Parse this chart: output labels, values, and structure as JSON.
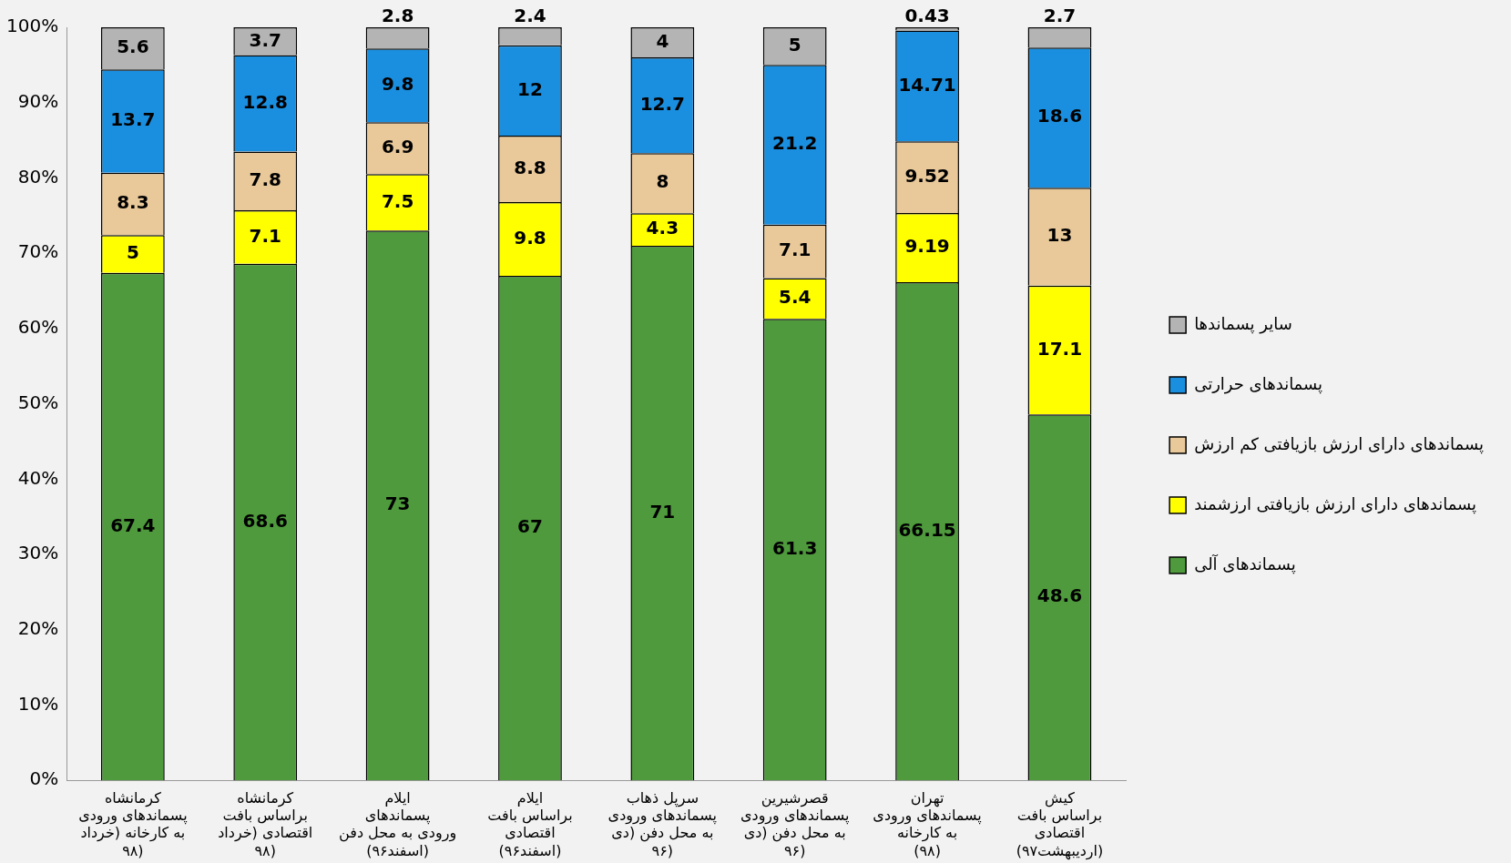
{
  "chart_data": {
    "type": "bar",
    "stacked": true,
    "categories": [
      "کرمانشاه\nپسماندهای ورودی\nبه کارخانه (خرداد\n۹۸)",
      "کرمانشاه\nبراساس بافت\nاقتصادی (خرداد\n۹۸)",
      "ایلام\nپسماندهای\nورودی به محل دفن\n(اسفند۹۶)",
      "ایلام\nبراساس بافت\nاقتصادی\n(اسفند۹۶)",
      "سرپل ذهاب\nپسماندهای ورودی\nبه محل دفن (دی\n۹۶)",
      "قصرشیرین\nپسماندهای ورودی\nبه محل دفن (دی\n۹۶)",
      "تهران\nپسماندهای ورودی\nبه کارخانه\n(۹۸)",
      "کیش\nبراساس بافت\nاقتصادی\n(اردیبهشت۹۷)"
    ],
    "series": [
      {
        "name": "پسماندهای آلی",
        "color": "#4e9a3c",
        "values": [
          67.4,
          68.6,
          73,
          67,
          71,
          61.3,
          66.15,
          48.6
        ]
      },
      {
        "name": "پسماندهای دارای ارزش بازیافتی ارزشمند",
        "color": "#ffff00",
        "values": [
          5,
          7.1,
          7.5,
          9.8,
          4.3,
          5.4,
          9.19,
          17.1
        ]
      },
      {
        "name": "پسماندهای دارای ارزش بازیافتی کم ارزش",
        "color": "#e9c99a",
        "values": [
          8.3,
          7.8,
          6.9,
          8.8,
          8,
          7.1,
          9.52,
          13
        ]
      },
      {
        "name": "پسماندهای حرارتی",
        "color": "#1b8fdf",
        "values": [
          13.7,
          12.8,
          9.8,
          12,
          12.7,
          21.2,
          14.71,
          18.6
        ]
      },
      {
        "name": "سایر پسماندها",
        "color": "#b4b4b4",
        "values": [
          5.6,
          3.7,
          2.8,
          2.4,
          4,
          5,
          0.43,
          2.7
        ]
      }
    ],
    "ylim": [
      0,
      100
    ],
    "yticks": [
      {
        "value": 0,
        "label": "0%"
      },
      {
        "value": 10,
        "label": "10%"
      },
      {
        "value": 20,
        "label": "20%"
      },
      {
        "value": 30,
        "label": "30%"
      },
      {
        "value": 40,
        "label": "40%"
      },
      {
        "value": 50,
        "label": "50%"
      },
      {
        "value": 60,
        "label": "60%"
      },
      {
        "value": 70,
        "label": "70%"
      },
      {
        "value": 80,
        "label": "80%"
      },
      {
        "value": 90,
        "label": "90%"
      },
      {
        "value": 100,
        "label": "100%"
      }
    ],
    "grid": false,
    "legend": "right",
    "data_labels": true
  }
}
